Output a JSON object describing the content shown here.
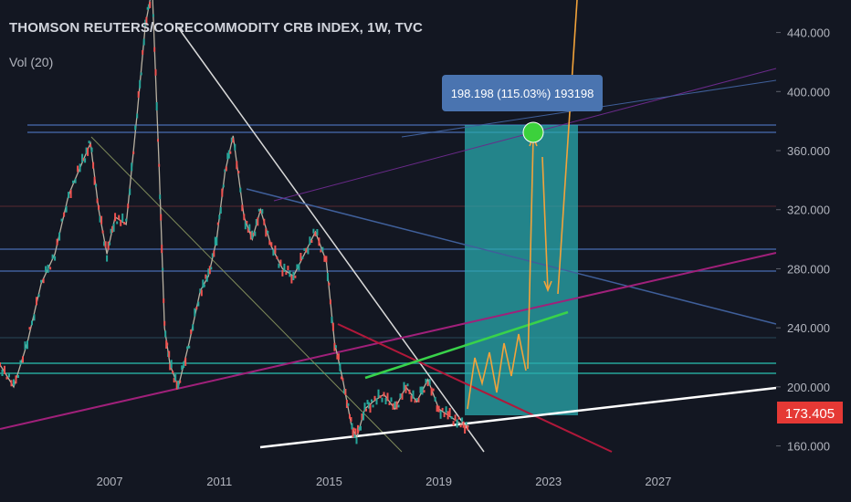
{
  "header": {
    "title": "THOMSON REUTERS/CORECOMMODITY CRB INDEX, 1W, TVC",
    "indicator": "Vol (20)"
  },
  "colors": {
    "background": "#131722",
    "candle_up": "#26a69a",
    "candle_down": "#ef5350",
    "measure_box": "#2aa9ad",
    "tag": "#4a74b0",
    "price_label": "#e53935",
    "trend_white": "#d9d9d9",
    "trend_blue": "#3f5f9a",
    "trend_magenta": "#a0207a",
    "trend_green": "#39d24a",
    "arrows": "#f2a33a",
    "horiz_teal": "#26a69a"
  },
  "measure_tag": {
    "text": "198.198 (115.03%) 193198"
  },
  "current_price": {
    "text": "173.405",
    "value": 173.405
  },
  "chart_data": {
    "type": "line",
    "title": "THOMSON REUTERS/CORECOMMODITY CRB INDEX, 1W, TVC",
    "xlabel": "",
    "ylabel": "",
    "x_ticks": [
      "2007",
      "2011",
      "2015",
      "2019",
      "2023",
      "2027"
    ],
    "y_ticks": [
      "160.000",
      "200.000",
      "240.000",
      "280.000",
      "320.000",
      "360.000",
      "400.000",
      "440.000"
    ],
    "ylim": [
      148,
      462
    ],
    "xlim": [
      2003.0,
      2031.3
    ],
    "grid": false,
    "series": [
      {
        "x": [
          2003.0,
          2003.5,
          2004.0,
          2004.5,
          2005.0,
          2005.5,
          2006.0,
          2006.3,
          2006.6,
          2006.9,
          2007.2,
          2007.6,
          2008.0,
          2008.3,
          2008.55,
          2008.8,
          2009.0,
          2009.2,
          2009.5,
          2009.9,
          2010.3,
          2010.6,
          2010.9,
          2011.2,
          2011.5,
          2011.9,
          2012.2,
          2012.5,
          2012.9,
          2013.3,
          2013.7,
          2014.1,
          2014.5,
          2014.9,
          2015.2,
          2015.5,
          2015.8,
          2016.0,
          2016.3,
          2016.6,
          2017.0,
          2017.4,
          2017.8,
          2018.2,
          2018.6,
          2019.0,
          2019.4,
          2019.8,
          2020.1
        ],
        "values": [
          215,
          200,
          230,
          270,
          290,
          330,
          352,
          365,
          320,
          290,
          315,
          310,
          385,
          445,
          470,
          350,
          240,
          215,
          200,
          230,
          265,
          275,
          300,
          345,
          370,
          315,
          300,
          320,
          295,
          280,
          275,
          290,
          305,
          285,
          230,
          205,
          175,
          165,
          185,
          190,
          195,
          185,
          200,
          190,
          205,
          185,
          180,
          175,
          173.4
        ]
      }
    ],
    "annotations": [
      "198.198 (115.03%) 193198",
      "173.405"
    ]
  }
}
